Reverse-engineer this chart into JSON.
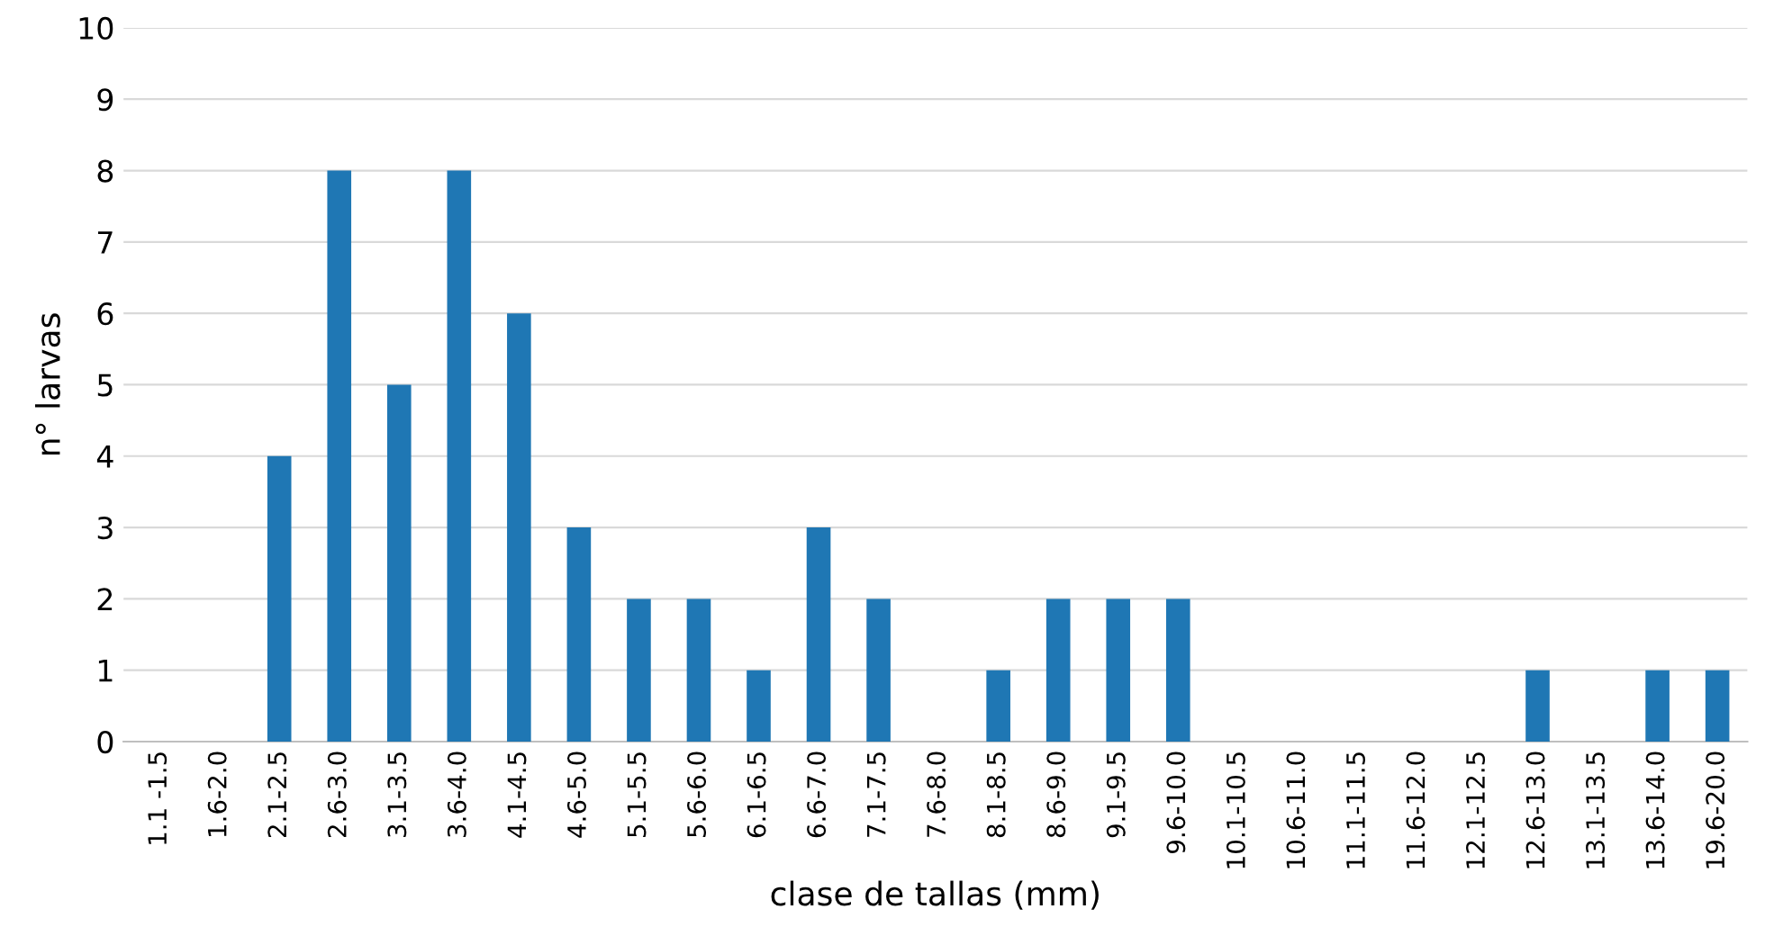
{
  "chart_data": {
    "type": "bar",
    "xlabel": "clase de tallas (mm)",
    "ylabel": "n° larvas",
    "categories": [
      "1.1 -1.5",
      "1.6-2.0",
      "2.1-2.5",
      "2.6-3.0",
      "3.1-3.5",
      "3.6-4.0",
      "4.1-4.5",
      "4.6-5.0",
      "5.1-5.5",
      "5.6-6.0",
      "6.1-6.5",
      "6.6-7.0",
      "7.1-7.5",
      "7.6-8.0",
      "8.1-8.5",
      "8.6-9.0",
      "9.1-9.5",
      "9.6-10.0",
      "10.1-10.5",
      "10.6-11.0",
      "11.1-11.5",
      "11.6-12.0",
      "12.1-12.5",
      "12.6-13.0",
      "13.1-13.5",
      "13.6-14.0",
      "19.6-20.0"
    ],
    "values": [
      0,
      0,
      4,
      8,
      5,
      8,
      6,
      3,
      2,
      2,
      1,
      3,
      2,
      0,
      1,
      2,
      2,
      2,
      0,
      0,
      0,
      0,
      0,
      1,
      0,
      1,
      1
    ],
    "color": "#1f77b4",
    "ylim": [
      0,
      10
    ],
    "yticks": [
      0,
      1,
      2,
      3,
      4,
      5,
      6,
      7,
      8,
      9,
      10
    ],
    "grid": "y"
  }
}
